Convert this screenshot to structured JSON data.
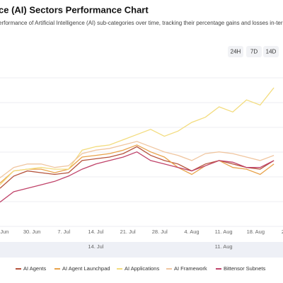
{
  "chart_data": {
    "type": "line",
    "title": "ce (AI) Sectors Performance Chart",
    "subtitle": "erformance of Artificial Intelligence (AI) sub-categories over time, tracking their percentage gains and losses in-terms",
    "range_buttons": [
      "24H",
      "7D",
      "14D"
    ],
    "x": [
      0,
      3,
      6,
      9,
      12,
      15,
      18,
      21,
      24,
      27,
      30,
      33,
      36,
      39,
      42,
      45,
      48,
      51,
      54,
      57,
      60
    ],
    "xlim": [
      0,
      62
    ],
    "xticks": [
      {
        "value": 1,
        "label": "Jun"
      },
      {
        "value": 7,
        "label": "30. Jun"
      },
      {
        "value": 14,
        "label": "7. Jul"
      },
      {
        "value": 21,
        "label": "14. Jul"
      },
      {
        "value": 28,
        "label": "21. Jul"
      },
      {
        "value": 35,
        "label": "28. Jul"
      },
      {
        "value": 42,
        "label": "4. Aug"
      },
      {
        "value": 49,
        "label": "11. Aug"
      },
      {
        "value": 56,
        "label": "18. Aug"
      },
      {
        "value": 62,
        "label": "2"
      }
    ],
    "ylim": [
      0,
      100
    ],
    "grid": true,
    "series": [
      {
        "name": "AI Agents",
        "color": "#b5533c",
        "values": [
          22,
          29,
          32,
          31,
          30,
          31,
          38,
          39,
          40,
          42,
          46,
          41,
          38,
          36,
          32,
          36,
          38,
          36,
          34,
          33,
          38
        ]
      },
      {
        "name": "AI Agent Launchpad",
        "color": "#e8a24a",
        "values": [
          25,
          32,
          33,
          33,
          31,
          33,
          40,
          41,
          42,
          44,
          47,
          43,
          40,
          34,
          30,
          35,
          38,
          34,
          33,
          30,
          36
        ]
      },
      {
        "name": "AI Applications",
        "color": "#f3dc7e",
        "values": [
          24,
          32,
          33,
          34,
          33,
          33,
          44,
          46,
          47,
          50,
          53,
          56,
          52,
          55,
          60,
          63,
          69,
          66,
          73,
          70,
          80
        ]
      },
      {
        "name": "AI Framework",
        "color": "#f0c6a0",
        "values": [
          28,
          34,
          36,
          36,
          34,
          35,
          42,
          44,
          45,
          47,
          49,
          46,
          43,
          41,
          38,
          42,
          43,
          42,
          40,
          38,
          41
        ]
      },
      {
        "name": "Bittensor Subnets",
        "color": "#c0436a",
        "values": [
          14,
          20,
          22,
          24,
          26,
          29,
          33,
          36,
          38,
          40,
          43,
          38,
          36,
          34,
          32,
          35,
          38,
          37,
          34,
          34,
          38
        ]
      }
    ],
    "navigator_labels": [
      {
        "value": 21,
        "label": "14. Jul"
      },
      {
        "value": 49,
        "label": "11. Aug"
      }
    ]
  }
}
